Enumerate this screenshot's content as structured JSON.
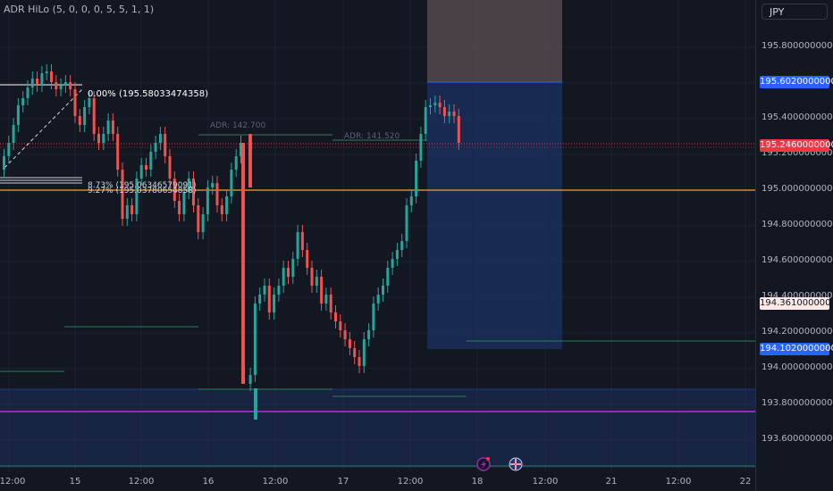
{
  "indicator": {
    "title": "ADR HiLo (5, 0, 0, 0, 5, 5, 1, 1)"
  },
  "currency": {
    "label": "JPY"
  },
  "annotations": {
    "fib_top": "0.00% (195.58033474358)",
    "fib_a": "8.73% (195.06346579091)",
    "fib_b": "9.27% (195.03780654858)",
    "adr_1": "ADR: 142.700",
    "adr_2": "ADR: 141.520"
  },
  "axis": {
    "ticks": [
      "195.80000000000",
      "195.40000000000",
      "195.20000000000",
      "195.00000000000",
      "194.80000000000",
      "194.60000000000",
      "194.40000000000",
      "194.20000000000",
      "194.00000000000",
      "193.80000000000",
      "193.60000000000"
    ],
    "labels": {
      "target": "195.60200000000",
      "current": "195.24600000000",
      "mid": "194.36100000000",
      "stop": "194.10200000000"
    },
    "label_colors": {
      "target": "#2962ff",
      "current": "#f23645",
      "mid": "#fbe9e7",
      "stop": "#2962ff"
    }
  },
  "time_axis": {
    "labels": [
      "12:00",
      "15",
      "12:00",
      "16",
      "12:00",
      "17",
      "12:00",
      "18",
      "12:00",
      "21",
      "12:00",
      "22"
    ]
  },
  "icons": [
    "lightning-event-icon",
    "uk-flag-event-icon"
  ]
}
